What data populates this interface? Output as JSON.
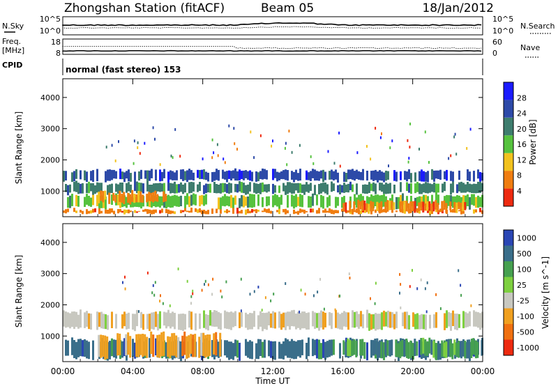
{
  "header": {
    "station": "Zhongshan Station (fitACF)",
    "beam": "Beam 05",
    "date": "18/Jan/2012"
  },
  "summary": {
    "left_labels": {
      "nsky": "N.Sky",
      "freq": "Freq.",
      "freq_unit": "[MHz]",
      "cpid": "CPID"
    },
    "right_labels": {
      "nsearch": "N.Search",
      "nave": "Nave"
    },
    "nsky_ticks": [
      "10^5",
      "10^0"
    ],
    "nsearch_ticks": [
      "10^5",
      "10^0"
    ],
    "freq_ticks": [
      "18",
      "8"
    ],
    "nave_ticks": [
      "60",
      "0"
    ],
    "cpid_text": "normal (fast stereo) 153"
  },
  "chart_data": [
    {
      "type": "heatmap",
      "name": "power",
      "ylabel": "Slant Range [km]",
      "yticks": [
        1000,
        2000,
        3000,
        4000
      ],
      "ylim": [
        180,
        4600
      ],
      "colorbar_label": "Power [dB]",
      "colorbar_ticks": [
        "4",
        "8",
        "12",
        "16",
        "20",
        "24",
        "28"
      ],
      "colors": [
        "#1b1bff",
        "#2d4aa8",
        "#3e7d6e",
        "#56c23e",
        "#f2c21e",
        "#f07d10",
        "#ee2a10"
      ],
      "echo_bands": [
        {
          "start": "00:00",
          "end": "24:00",
          "range_km": [
            250,
            450
          ],
          "level": 5
        },
        {
          "start": "00:00",
          "end": "24:00",
          "range_km": [
            450,
            900
          ],
          "level": 3
        },
        {
          "start": "00:00",
          "end": "24:00",
          "range_km": [
            900,
            1300
          ],
          "level": 2
        },
        {
          "start": "00:00",
          "end": "24:00",
          "range_km": [
            1300,
            1700
          ],
          "level": 1
        },
        {
          "start": "02:00",
          "end": "06:00",
          "range_km": [
            600,
            1000
          ],
          "level": 5
        },
        {
          "start": "16:00",
          "end": "23:00",
          "range_km": [
            300,
            700
          ],
          "level": 5
        }
      ]
    },
    {
      "type": "heatmap",
      "name": "velocity",
      "xlabel": "Time UT",
      "ylabel": "Slant Range [km]",
      "yticks": [
        1000,
        2000,
        3000,
        4000
      ],
      "ylim": [
        180,
        4600
      ],
      "colorbar_label": "Velocity [m s^-1]",
      "colorbar_ticks": [
        "1000",
        "500",
        "100",
        "25",
        "-25",
        "-100",
        "-500",
        "-1000"
      ],
      "colors": [
        "#2a46b4",
        "#3a6e8a",
        "#46a050",
        "#7ed040",
        "#c8c8c0",
        "#f0a020",
        "#f07010",
        "#ee2a10"
      ],
      "echo_bands": [
        {
          "start": "00:00",
          "end": "24:00",
          "range_km": [
            1200,
            1800
          ],
          "level": 4
        },
        {
          "start": "00:00",
          "end": "24:00",
          "range_km": [
            250,
            900
          ],
          "level": 1
        },
        {
          "start": "02:00",
          "end": "09:00",
          "range_km": [
            300,
            1100
          ],
          "level": 5
        },
        {
          "start": "16:00",
          "end": "24:00",
          "range_km": [
            300,
            900
          ],
          "level": 2
        }
      ],
      "xticks": [
        "00:00",
        "04:00",
        "08:00",
        "12:00",
        "16:00",
        "20:00",
        "00:00"
      ]
    }
  ]
}
